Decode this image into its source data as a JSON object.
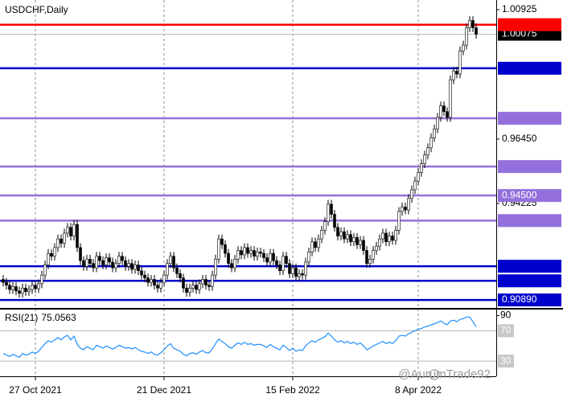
{
  "chart_data": {
    "type": "candlestick",
    "title": "USDCHF,Daily",
    "categories": [
      null,
      null,
      null,
      null,
      null,
      null,
      null,
      null,
      null,
      null,
      "27 Oct 2021",
      null,
      null,
      null,
      null,
      null,
      null,
      null,
      null,
      null,
      null,
      null,
      null,
      null,
      null,
      null,
      null,
      null,
      null,
      null,
      null,
      null,
      null,
      null,
      null,
      null,
      null,
      null,
      null,
      null,
      null,
      null,
      null,
      null,
      null,
      null,
      null,
      null,
      null,
      null,
      "21 Dec 2021",
      null,
      null,
      null,
      null,
      null,
      null,
      null,
      null,
      null,
      null,
      null,
      null,
      null,
      null,
      null,
      null,
      null,
      null,
      null,
      null,
      null,
      null,
      null,
      null,
      null,
      null,
      null,
      null,
      null,
      null,
      null,
      null,
      null,
      null,
      null,
      null,
      null,
      null,
      null,
      "15 Feb 2022",
      null,
      null,
      null,
      null,
      null,
      null,
      null,
      null,
      null,
      null,
      null,
      null,
      null,
      null,
      null,
      null,
      null,
      null,
      null,
      null,
      null,
      null,
      null,
      null,
      null,
      null,
      null,
      null,
      null,
      null,
      null,
      null,
      null,
      null,
      null,
      null,
      null,
      null,
      "8 Apr 2022",
      null,
      null,
      null,
      null,
      null,
      null,
      null,
      null,
      null,
      null,
      null,
      null,
      null,
      null,
      null,
      null,
      null,
      null
    ],
    "open": [
      0.916,
      0.915,
      0.914,
      0.9125,
      0.9135,
      0.912,
      0.9112,
      0.913,
      0.9118,
      0.9125,
      0.914,
      0.9128,
      0.9145,
      0.9175,
      0.921,
      0.925,
      0.924,
      0.927,
      0.93,
      0.9285,
      0.932,
      0.934,
      0.931,
      0.935,
      0.927,
      0.9225,
      0.9205,
      0.923,
      0.9215,
      0.92,
      0.924,
      0.9225,
      0.921,
      0.9235,
      0.922,
      0.92,
      0.9215,
      0.924,
      0.9225,
      0.9205,
      0.9215,
      0.9195,
      0.921,
      0.919,
      0.9175,
      0.9165,
      0.915,
      0.916,
      0.914,
      0.913,
      0.915,
      0.9175,
      0.9215,
      0.924,
      0.92,
      0.918,
      0.9165,
      0.913,
      0.9115,
      0.913,
      0.914,
      0.9125,
      0.9145,
      0.916,
      0.914,
      0.9135,
      0.9175,
      0.923,
      0.93,
      0.928,
      0.925,
      0.9215,
      0.92,
      0.923,
      0.926,
      0.9245,
      0.927,
      0.925,
      0.926,
      0.924,
      0.9255,
      0.925,
      0.9235,
      0.922,
      0.925,
      0.9225,
      0.921,
      0.919,
      0.924,
      0.9215,
      0.918,
      0.92,
      0.917,
      0.918,
      0.9175,
      0.922,
      0.9255,
      0.929,
      0.927,
      0.93,
      0.933,
      0.936,
      0.942,
      0.9385,
      0.934,
      0.931,
      0.9325,
      0.93,
      0.9315,
      0.929,
      0.9305,
      0.928,
      0.9295,
      0.926,
      0.9215,
      0.923,
      0.926,
      0.9275,
      0.93,
      0.932,
      0.929,
      0.931,
      0.9295,
      0.933,
      0.9395,
      0.941,
      0.94,
      0.944,
      0.947,
      0.95,
      0.953,
      0.956,
      0.959,
      0.9615,
      0.965,
      0.968,
      0.972,
      0.976,
      0.974,
      0.972,
      0.985,
      0.988,
      0.987,
      0.995,
      0.997,
      1.003,
      1.0055,
      1.003
    ],
    "high": [
      0.9175,
      0.9165,
      0.9155,
      0.915,
      0.915,
      0.9135,
      0.9145,
      0.9145,
      0.914,
      0.9155,
      0.9155,
      0.916,
      0.919,
      0.9225,
      0.9265,
      0.9265,
      0.9285,
      0.9315,
      0.9315,
      0.9335,
      0.9355,
      0.9355,
      0.9365,
      0.9365,
      0.9285,
      0.924,
      0.9245,
      0.9245,
      0.923,
      0.9255,
      0.9255,
      0.924,
      0.925,
      0.925,
      0.9235,
      0.923,
      0.9255,
      0.9255,
      0.924,
      0.923,
      0.923,
      0.9225,
      0.9225,
      0.9205,
      0.919,
      0.918,
      0.9175,
      0.9175,
      0.9155,
      0.9165,
      0.919,
      0.923,
      0.9255,
      0.9255,
      0.9215,
      0.9195,
      0.918,
      0.9145,
      0.9145,
      0.9155,
      0.9155,
      0.916,
      0.9175,
      0.9175,
      0.9155,
      0.919,
      0.9245,
      0.9315,
      0.9315,
      0.9295,
      0.9265,
      0.923,
      0.9245,
      0.9275,
      0.9275,
      0.9285,
      0.9285,
      0.9275,
      0.9275,
      0.927,
      0.927,
      0.9265,
      0.925,
      0.9265,
      0.9265,
      0.924,
      0.9225,
      0.9255,
      0.9255,
      0.923,
      0.9215,
      0.9215,
      0.9195,
      0.9195,
      0.9235,
      0.927,
      0.9305,
      0.9305,
      0.9315,
      0.9345,
      0.9375,
      0.9435,
      0.9435,
      0.94,
      0.9355,
      0.934,
      0.934,
      0.933,
      0.933,
      0.932,
      0.932,
      0.931,
      0.931,
      0.9275,
      0.9245,
      0.9275,
      0.929,
      0.9315,
      0.9335,
      0.9335,
      0.9325,
      0.9325,
      0.9345,
      0.941,
      0.9425,
      0.9425,
      0.9455,
      0.9485,
      0.9515,
      0.9545,
      0.9575,
      0.9605,
      0.963,
      0.9665,
      0.9695,
      0.9735,
      0.9775,
      0.9775,
      0.9755,
      0.9865,
      0.9895,
      0.9895,
      0.9965,
      0.9985,
      1.0045,
      1.007,
      1.007,
      1.0045
    ],
    "low": [
      0.9135,
      0.9125,
      0.911,
      0.911,
      0.9105,
      0.9097,
      0.9097,
      0.9103,
      0.9103,
      0.911,
      0.9113,
      0.9113,
      0.913,
      0.916,
      0.9195,
      0.9225,
      0.9225,
      0.9255,
      0.927,
      0.927,
      0.9305,
      0.9295,
      0.9295,
      0.9255,
      0.921,
      0.919,
      0.919,
      0.92,
      0.9185,
      0.9185,
      0.921,
      0.9195,
      0.9195,
      0.9205,
      0.9185,
      0.9185,
      0.92,
      0.921,
      0.919,
      0.919,
      0.918,
      0.918,
      0.9175,
      0.916,
      0.915,
      0.9135,
      0.9135,
      0.9125,
      0.9115,
      0.9115,
      0.9135,
      0.916,
      0.92,
      0.9185,
      0.9165,
      0.915,
      0.9115,
      0.91,
      0.91,
      0.9115,
      0.911,
      0.911,
      0.913,
      0.9125,
      0.912,
      0.912,
      0.916,
      0.9215,
      0.9265,
      0.9235,
      0.92,
      0.9185,
      0.9185,
      0.9215,
      0.923,
      0.923,
      0.9235,
      0.9235,
      0.9225,
      0.9225,
      0.9235,
      0.922,
      0.9205,
      0.9205,
      0.921,
      0.9195,
      0.9175,
      0.9175,
      0.92,
      0.9165,
      0.9165,
      0.9155,
      0.9155,
      0.916,
      0.916,
      0.9205,
      0.924,
      0.9255,
      0.9255,
      0.9285,
      0.9315,
      0.9345,
      0.937,
      0.9325,
      0.9295,
      0.9295,
      0.9285,
      0.9285,
      0.9275,
      0.9275,
      0.9265,
      0.9265,
      0.9245,
      0.92,
      0.92,
      0.9215,
      0.9245,
      0.926,
      0.9285,
      0.9275,
      0.9275,
      0.928,
      0.928,
      0.9315,
      0.938,
      0.9385,
      0.9385,
      0.9425,
      0.9455,
      0.9485,
      0.9515,
      0.9545,
      0.9575,
      0.96,
      0.9635,
      0.9665,
      0.9705,
      0.9725,
      0.9705,
      0.9705,
      0.9835,
      0.9855,
      0.9855,
      0.9935,
      0.9955,
      1.0015,
      1.0015,
      0.99925
    ],
    "close": [
      0.915,
      0.914,
      0.9125,
      0.9135,
      0.912,
      0.9112,
      0.913,
      0.9118,
      0.9125,
      0.914,
      0.9128,
      0.9145,
      0.9175,
      0.921,
      0.925,
      0.924,
      0.927,
      0.93,
      0.9285,
      0.932,
      0.934,
      0.931,
      0.935,
      0.927,
      0.9225,
      0.9205,
      0.923,
      0.9215,
      0.92,
      0.924,
      0.9225,
      0.921,
      0.9235,
      0.922,
      0.92,
      0.9215,
      0.924,
      0.9225,
      0.9205,
      0.9215,
      0.9195,
      0.921,
      0.919,
      0.9175,
      0.9165,
      0.915,
      0.916,
      0.914,
      0.913,
      0.915,
      0.9175,
      0.9215,
      0.924,
      0.92,
      0.918,
      0.9165,
      0.913,
      0.9115,
      0.913,
      0.914,
      0.9125,
      0.9145,
      0.916,
      0.914,
      0.9135,
      0.9175,
      0.923,
      0.93,
      0.928,
      0.925,
      0.9215,
      0.92,
      0.923,
      0.926,
      0.9245,
      0.927,
      0.925,
      0.926,
      0.924,
      0.9255,
      0.925,
      0.9235,
      0.922,
      0.925,
      0.9225,
      0.921,
      0.919,
      0.924,
      0.9215,
      0.918,
      0.92,
      0.917,
      0.918,
      0.9175,
      0.922,
      0.9255,
      0.929,
      0.927,
      0.93,
      0.933,
      0.936,
      0.942,
      0.9385,
      0.934,
      0.931,
      0.9325,
      0.93,
      0.9315,
      0.929,
      0.9305,
      0.928,
      0.9295,
      0.926,
      0.9215,
      0.923,
      0.926,
      0.9275,
      0.93,
      0.932,
      0.929,
      0.931,
      0.9295,
      0.933,
      0.9395,
      0.941,
      0.94,
      0.944,
      0.947,
      0.95,
      0.953,
      0.956,
      0.959,
      0.9615,
      0.965,
      0.968,
      0.972,
      0.976,
      0.974,
      0.972,
      0.985,
      0.988,
      0.987,
      0.995,
      0.997,
      1.003,
      1.0055,
      1.003,
      1.00075
    ],
    "up_color": "#ffffff",
    "down_color": "#000000",
    "ylim": [
      0.90614,
      1.01258
    ],
    "yticks": [
      1.00925,
      {
        "value": 0.9645,
        "label": "0.96450"
      },
      {
        "value": 0.94225,
        "label": "0.94225"
      }
    ],
    "levels": [
      {
        "value": 1.00405,
        "color": "#ff0000"
      },
      {
        "value": 0.98899,
        "color": "#0000cd"
      },
      {
        "value": 0.97168,
        "color": "#9370db"
      },
      {
        "value": 0.95501,
        "color": "#9370db"
      },
      {
        "value": 0.945,
        "label": "0.94500",
        "color": "#9370db"
      },
      {
        "value": 0.93633,
        "color": "#9370db"
      },
      {
        "value": 0.92055,
        "color": "#0000cd"
      },
      {
        "value": 0.91551,
        "color": "#0000cd"
      },
      {
        "value": 0.9089,
        "label": "0.90890",
        "color": "#0000cd"
      }
    ],
    "indicator": {
      "type": "line",
      "name": "RSI(21)",
      "color": "#1e90ff",
      "values": [
        40,
        38,
        36,
        39,
        37,
        35,
        40,
        38,
        39,
        42,
        40,
        43,
        48,
        53,
        57,
        55,
        58,
        61,
        58,
        62,
        64,
        58,
        63,
        52,
        47,
        45,
        49,
        47,
        45,
        51,
        49,
        47,
        50,
        48,
        46,
        48,
        51,
        49,
        47,
        48,
        46,
        48,
        45,
        43,
        42,
        40,
        42,
        39,
        38,
        41,
        45,
        50,
        53,
        47,
        45,
        43,
        39,
        37,
        40,
        41,
        39,
        42,
        44,
        41,
        41,
        46,
        53,
        59,
        56,
        53,
        49,
        47,
        51,
        54,
        52,
        55,
        52,
        53,
        51,
        52,
        52,
        50,
        48,
        52,
        49,
        47,
        45,
        51,
        48,
        44,
        47,
        43,
        45,
        44,
        50,
        54,
        57,
        55,
        58,
        60,
        62,
        67,
        63,
        58,
        55,
        57,
        54,
        56,
        53,
        55,
        52,
        54,
        50,
        45,
        47,
        50,
        52,
        54,
        56,
        53,
        55,
        53,
        57,
        63,
        64,
        63,
        66,
        68,
        70,
        72,
        73,
        75,
        76,
        78,
        79,
        81,
        83,
        80,
        78,
        83,
        84,
        82,
        85,
        86,
        88,
        88,
        82,
        75.0563
      ],
      "ylim": [
        10,
        98
      ],
      "yticks": [
        90
      ],
      "levels": [
        70,
        30
      ]
    },
    "watermark": "@AurumTrade92"
  }
}
